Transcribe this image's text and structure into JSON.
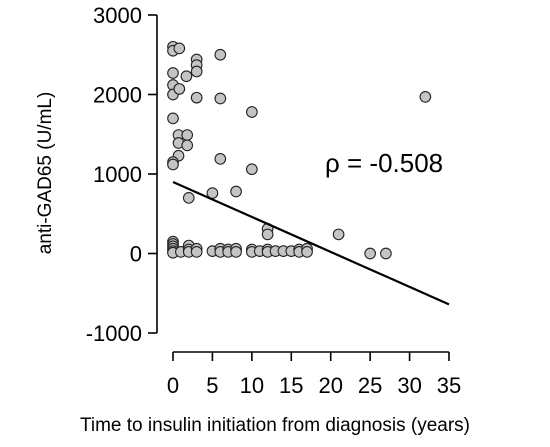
{
  "chart_data": {
    "type": "scatter",
    "xlabel": "Time to insulin initiation from diagnosis (years)",
    "ylabel": "anti-GAD65 (U/mL)",
    "xlim": [
      0,
      35
    ],
    "ylim": [
      -1000,
      3000
    ],
    "xticks": [
      0,
      5,
      10,
      15,
      20,
      25,
      30,
      35
    ],
    "yticks": [
      -1000,
      0,
      1000,
      2000,
      3000
    ],
    "annotation": "ρ = -0.508",
    "grid": false,
    "trendline": {
      "x": [
        0,
        35
      ],
      "y": [
        900,
        -640
      ]
    },
    "points": [
      {
        "x": 0,
        "y": 2600
      },
      {
        "x": 0,
        "y": 2550
      },
      {
        "x": 0.8,
        "y": 2580
      },
      {
        "x": 0,
        "y": 2270
      },
      {
        "x": 0,
        "y": 2120
      },
      {
        "x": 0,
        "y": 2000
      },
      {
        "x": 0.8,
        "y": 2070
      },
      {
        "x": 1.7,
        "y": 2230
      },
      {
        "x": 3,
        "y": 2440
      },
      {
        "x": 3,
        "y": 2370
      },
      {
        "x": 3,
        "y": 2290
      },
      {
        "x": 3,
        "y": 1960
      },
      {
        "x": 6,
        "y": 2500
      },
      {
        "x": 6,
        "y": 1950
      },
      {
        "x": 10,
        "y": 1780
      },
      {
        "x": 32,
        "y": 1970
      },
      {
        "x": 0,
        "y": 1700
      },
      {
        "x": 0.7,
        "y": 1490
      },
      {
        "x": 0.7,
        "y": 1390
      },
      {
        "x": 1.8,
        "y": 1490
      },
      {
        "x": 1.8,
        "y": 1360
      },
      {
        "x": 0.7,
        "y": 1230
      },
      {
        "x": 0,
        "y": 1150
      },
      {
        "x": 0,
        "y": 1120
      },
      {
        "x": 6,
        "y": 1190
      },
      {
        "x": 10,
        "y": 1060
      },
      {
        "x": 5,
        "y": 760
      },
      {
        "x": 8,
        "y": 780
      },
      {
        "x": 2,
        "y": 700
      },
      {
        "x": 12,
        "y": 310
      },
      {
        "x": 12,
        "y": 240
      },
      {
        "x": 21,
        "y": 240
      },
      {
        "x": 0,
        "y": 150
      },
      {
        "x": 0,
        "y": 120
      },
      {
        "x": 0,
        "y": 90
      },
      {
        "x": 0,
        "y": 60
      },
      {
        "x": 0,
        "y": 30
      },
      {
        "x": 0,
        "y": 10
      },
      {
        "x": 1,
        "y": 20
      },
      {
        "x": 2,
        "y": 100
      },
      {
        "x": 2,
        "y": 50
      },
      {
        "x": 2,
        "y": 20
      },
      {
        "x": 3,
        "y": 60
      },
      {
        "x": 3,
        "y": 20
      },
      {
        "x": 5,
        "y": 30
      },
      {
        "x": 6,
        "y": 60
      },
      {
        "x": 6,
        "y": 20
      },
      {
        "x": 7,
        "y": 50
      },
      {
        "x": 7,
        "y": 20
      },
      {
        "x": 8,
        "y": 60
      },
      {
        "x": 8,
        "y": 20
      },
      {
        "x": 10,
        "y": 50
      },
      {
        "x": 10,
        "y": 20
      },
      {
        "x": 11,
        "y": 30
      },
      {
        "x": 12,
        "y": 50
      },
      {
        "x": 12,
        "y": 20
      },
      {
        "x": 13,
        "y": 30
      },
      {
        "x": 14,
        "y": 30
      },
      {
        "x": 15,
        "y": 30
      },
      {
        "x": 16,
        "y": 50
      },
      {
        "x": 16,
        "y": 20
      },
      {
        "x": 17,
        "y": 60
      },
      {
        "x": 17,
        "y": 20
      },
      {
        "x": 25,
        "y": 0
      },
      {
        "x": 27,
        "y": 0
      }
    ]
  }
}
